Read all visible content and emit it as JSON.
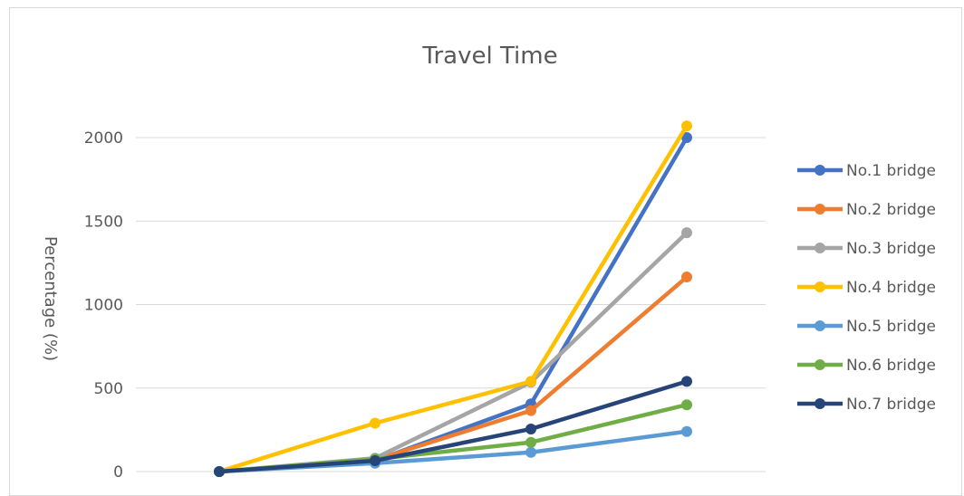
{
  "chart_data": {
    "type": "line",
    "title": "Travel Time",
    "xlabel": "",
    "ylabel": "Percentage (%)",
    "x": [
      1,
      2,
      3,
      4
    ],
    "ylim": [
      0,
      2000
    ],
    "yticks": [
      0,
      500,
      1000,
      1500,
      2000
    ],
    "grid": true,
    "legend": "right",
    "series": [
      {
        "name": "No.1 bridge",
        "color": "#4472C4",
        "values": [
          0,
          65,
          405,
          2000
        ]
      },
      {
        "name": "No.2 bridge",
        "color": "#ED7D31",
        "values": [
          0,
          70,
          365,
          1165
        ]
      },
      {
        "name": "No.3 bridge",
        "color": "#A5A5A5",
        "values": [
          0,
          80,
          535,
          1430
        ]
      },
      {
        "name": "No.4 bridge",
        "color": "#FFC000",
        "values": [
          0,
          290,
          540,
          2070
        ]
      },
      {
        "name": "No.5 bridge",
        "color": "#5B9BD5",
        "values": [
          0,
          50,
          115,
          240
        ]
      },
      {
        "name": "No.6 bridge",
        "color": "#70AD47",
        "values": [
          0,
          75,
          175,
          400
        ]
      },
      {
        "name": "No.7 bridge",
        "color": "#264478",
        "values": [
          0,
          65,
          255,
          540
        ]
      }
    ]
  }
}
